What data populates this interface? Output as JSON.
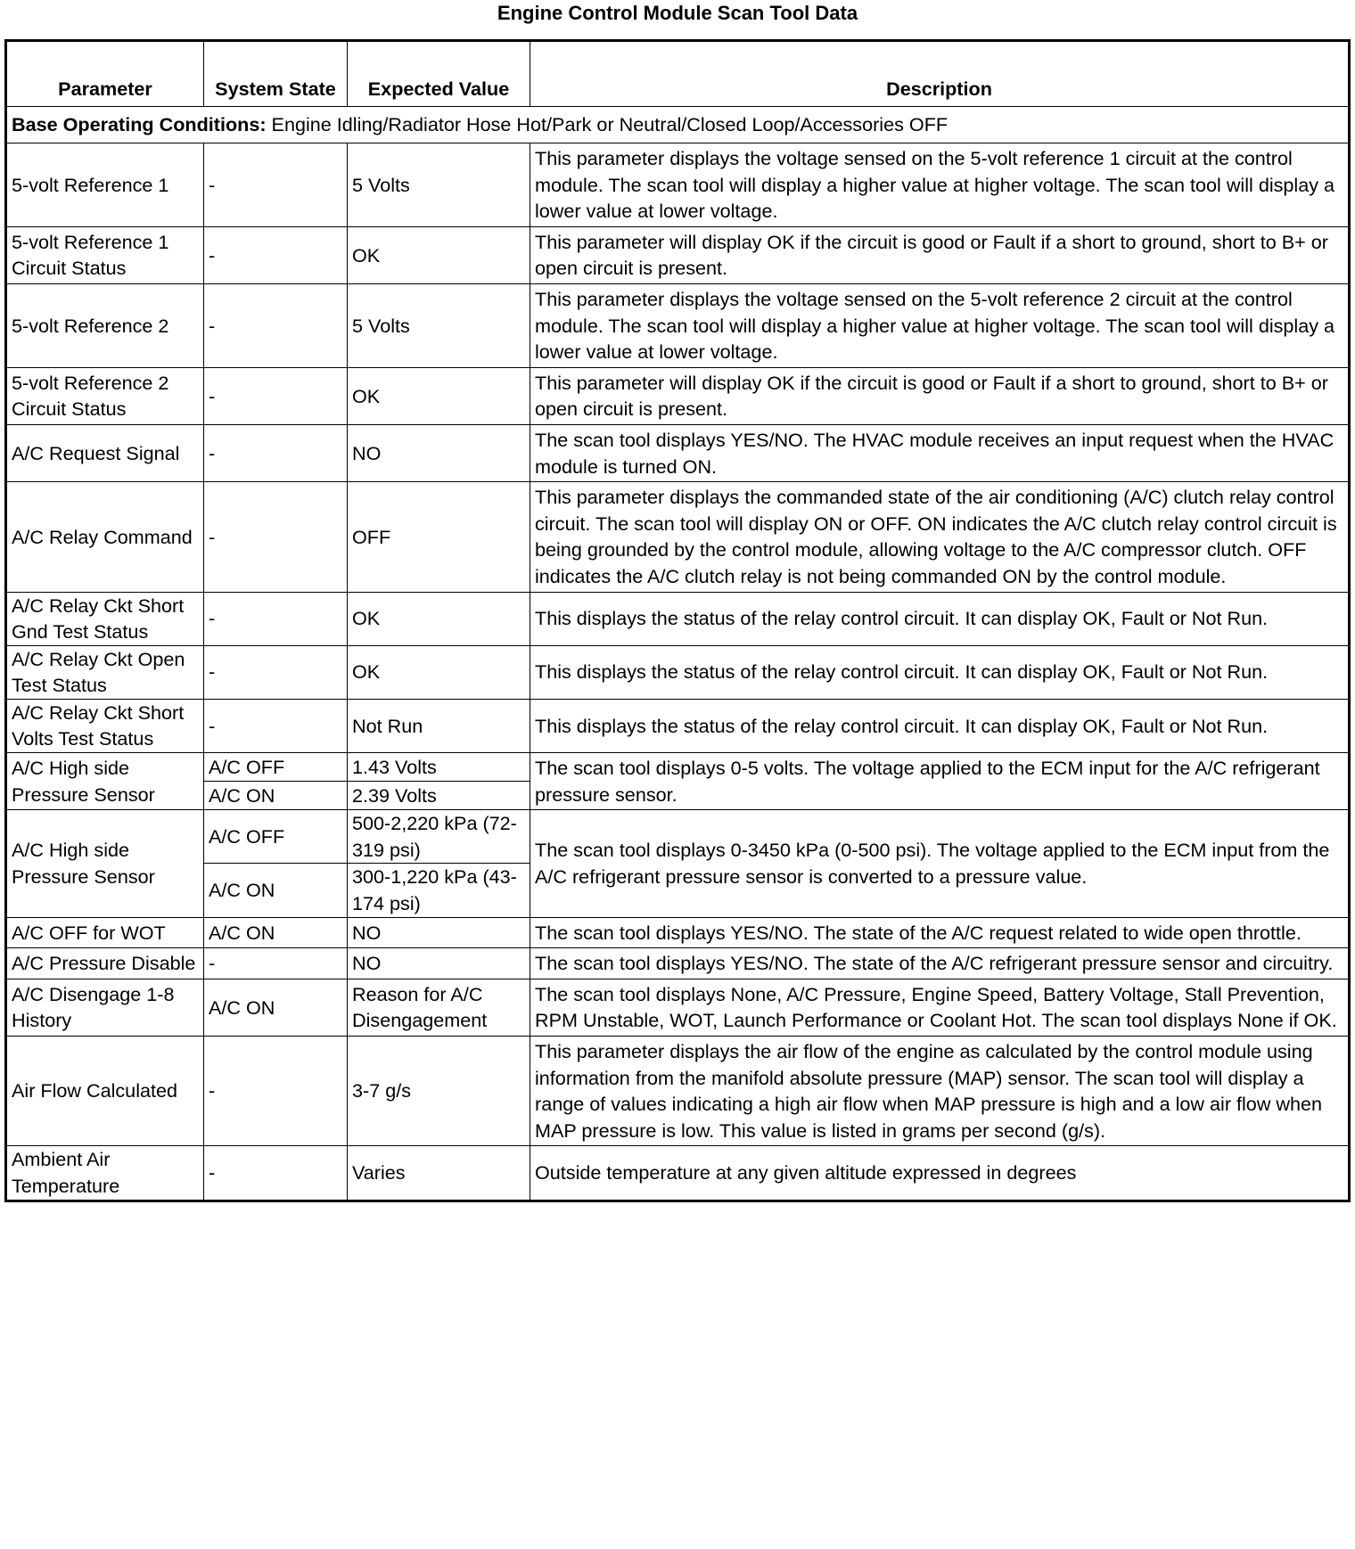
{
  "title": "Engine Control Module Scan Tool Data",
  "headers": {
    "parameter": "Parameter",
    "system_state": "System State",
    "expected_value": "Expected Value",
    "description": "Description"
  },
  "base_conditions": {
    "label": "Base Operating Conditions:",
    "text": " Engine Idling/Radiator Hose Hot/Park or Neutral/Closed Loop/Accessories OFF"
  },
  "rows": [
    {
      "parameter": "5-volt Reference 1",
      "state": "-",
      "value": "5 Volts",
      "description": "This parameter displays the voltage sensed on the 5-volt reference 1 circuit at the control module. The scan tool will display a higher value at higher voltage. The scan tool will display a lower value at lower voltage."
    },
    {
      "parameter": "5-volt Reference 1 Circuit Status",
      "state": "-",
      "value": "OK",
      "description": "This parameter will display OK if the circuit is good or Fault if a short to ground, short to B+ or open circuit is present."
    },
    {
      "parameter": "5-volt Reference 2",
      "state": "-",
      "value": "5 Volts",
      "description": "This parameter displays the voltage sensed on the 5-volt reference 2 circuit at the control module. The scan tool will display a higher value at higher voltage. The scan tool will display a lower value at lower voltage."
    },
    {
      "parameter": "5-volt Reference 2 Circuit Status",
      "state": "-",
      "value": "OK",
      "description": "This parameter will display OK if the circuit is good or Fault if a short to ground, short to B+ or open circuit is present."
    },
    {
      "parameter": "A/C Request Signal",
      "state": "-",
      "value": "NO",
      "description": "The scan tool displays YES/NO. The HVAC module receives an input request when the HVAC module is turned ON."
    },
    {
      "parameter": "A/C Relay Command",
      "state": "-",
      "value": "OFF",
      "description": "This parameter displays the commanded state of the air conditioning (A/C) clutch relay control circuit. The scan tool will display ON or OFF. ON indicates the A/C clutch relay control circuit is being grounded by the control module, allowing voltage to the A/C compressor clutch. OFF indicates the A/C clutch relay is not being commanded ON by the control module."
    },
    {
      "parameter": "A/C Relay Ckt Short Gnd Test Status",
      "state": "-",
      "value": "OK",
      "description": "This displays the status of the relay control circuit. It can display OK, Fault or Not Run."
    },
    {
      "parameter": "A/C Relay Ckt Open Test Status",
      "state": "-",
      "value": "OK",
      "description": "This displays the status of the relay control circuit. It can display OK, Fault or Not Run."
    },
    {
      "parameter": "A/C Relay Ckt Short Volts Test Status",
      "state": "-",
      "value": "Not Run",
      "description": "This displays the status of the relay control circuit. It can display OK, Fault or Not Run."
    },
    {
      "parameter": "A/C High side Pressure Sensor",
      "sub": [
        {
          "state": "A/C OFF",
          "value": "1.43 Volts"
        },
        {
          "state": "A/C ON",
          "value": "2.39 Volts"
        }
      ],
      "description": "The scan tool displays 0-5 volts. The voltage applied to the ECM input for the A/C refrigerant pressure sensor."
    },
    {
      "parameter": "A/C High side Pressure Sensor",
      "sub": [
        {
          "state": "A/C OFF",
          "value": "500-2,220 kPa (72-319 psi)"
        },
        {
          "state": "A/C ON",
          "value": "300-1,220 kPa (43-174 psi)"
        }
      ],
      "description": "The scan tool displays 0-3450  kPa (0-500 psi). The voltage applied to the ECM input from the A/C refrigerant pressure sensor is converted to a pressure value."
    },
    {
      "parameter": "A/C OFF for WOT",
      "state": "A/C ON",
      "value": "NO",
      "description": "The scan tool displays YES/NO. The state of the A/C request related to wide open throttle."
    },
    {
      "parameter": "A/C Pressure Disable",
      "state": "-",
      "value": "NO",
      "description": "The scan tool displays YES/NO. The state of the A/C refrigerant pressure sensor and circuitry."
    },
    {
      "parameter": "A/C Disengage 1-8 History",
      "state": "A/C ON",
      "value": "Reason for A/C Disengagement",
      "description": "The scan tool displays None, A/C Pressure, Engine Speed, Battery Voltage, Stall Prevention, RPM Unstable, WOT, Launch Performance or Coolant Hot. The scan tool displays None if OK."
    },
    {
      "parameter": "Air Flow Calculated",
      "state": "-",
      "value": "3-7 g/s",
      "description": "This parameter displays the air flow of the engine as calculated by the control module using information from the manifold absolute pressure (MAP) sensor. The scan tool will display a range of values indicating a high air flow when MAP pressure is high and a low air flow when MAP pressure is low. This value is listed in grams per second (g/s)."
    },
    {
      "parameter": "Ambient Air Temperature",
      "state": "-",
      "value": "Varies",
      "description": "Outside temperature at any given altitude expressed in degrees"
    }
  ]
}
